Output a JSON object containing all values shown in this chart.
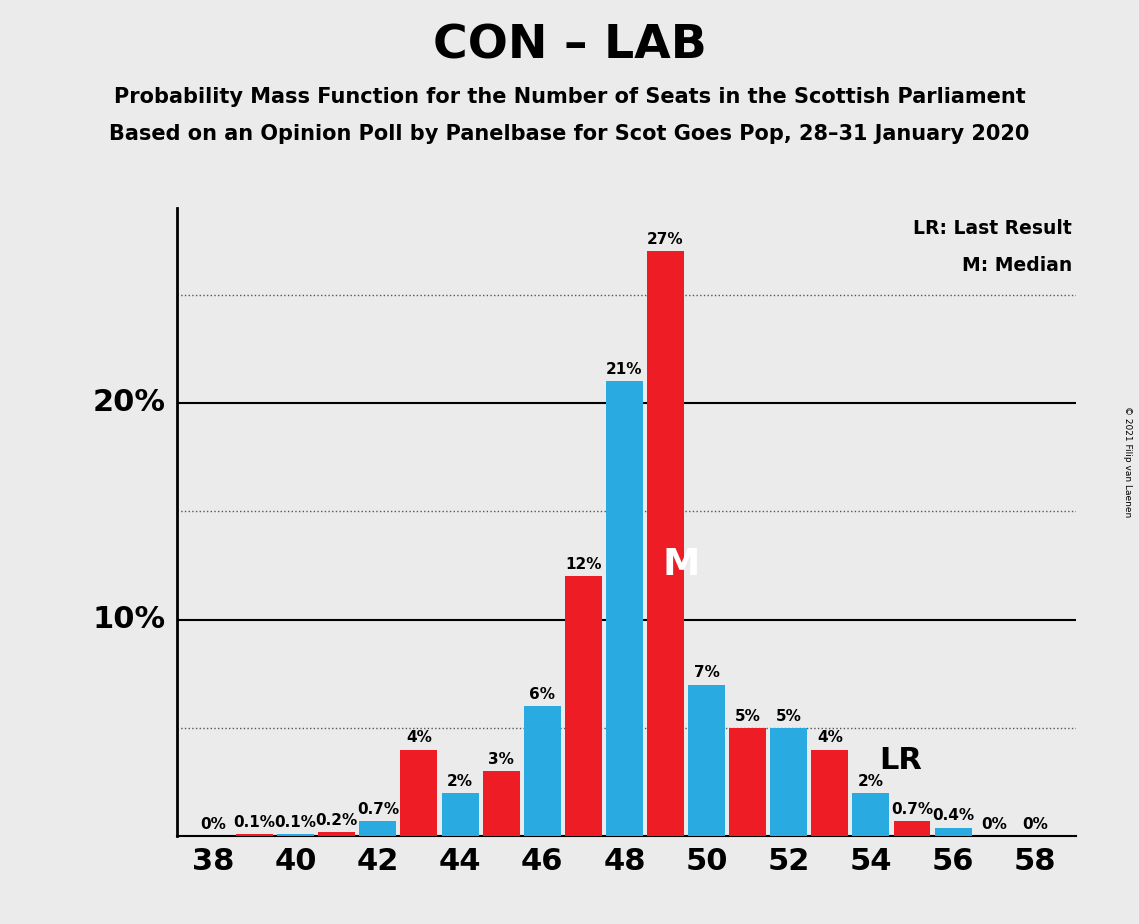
{
  "title": "CON – LAB",
  "subtitle1": "Probability Mass Function for the Number of Seats in the Scottish Parliament",
  "subtitle2": "Based on an Opinion Poll by Panelbase for Scot Goes Pop, 28–31 January 2020",
  "copyright": "© 2021 Filip van Laenen",
  "seats": [
    38,
    39,
    40,
    41,
    42,
    43,
    44,
    45,
    46,
    47,
    48,
    49,
    50,
    51,
    52,
    53,
    54,
    55,
    56,
    57,
    58
  ],
  "values": [
    0.0,
    0.1,
    0.1,
    0.2,
    0.7,
    4.0,
    2.0,
    3.0,
    6.0,
    12.0,
    21.0,
    27.0,
    7.0,
    5.0,
    5.0,
    4.0,
    2.0,
    0.7,
    0.4,
    0.0,
    0.0
  ],
  "colors": [
    "#29ABE2",
    "#EE1C25",
    "#29ABE2",
    "#EE1C25",
    "#29ABE2",
    "#EE1C25",
    "#29ABE2",
    "#EE1C25",
    "#29ABE2",
    "#EE1C25",
    "#29ABE2",
    "#EE1C25",
    "#29ABE2",
    "#EE1C25",
    "#29ABE2",
    "#EE1C25",
    "#29ABE2",
    "#EE1C25",
    "#29ABE2",
    "#EE1C25",
    "#29ABE2"
  ],
  "median_seat": 49,
  "lr_seat": 53,
  "background_color": "#EBEBEB",
  "ylim_max": 29,
  "dotted_lines": [
    5.0,
    15.0,
    25.0
  ],
  "solid_lines": [
    10.0,
    20.0
  ],
  "xticks": [
    38,
    40,
    42,
    44,
    46,
    48,
    50,
    52,
    54,
    56,
    58
  ],
  "legend_text1": "LR: Last Result",
  "legend_text2": "M: Median",
  "lr_label": "LR",
  "m_label": "M",
  "title_fontsize": 34,
  "subtitle_fontsize": 15,
  "axis_label_fontsize": 22,
  "bar_label_fontsize": 11,
  "ytick_label_fontsize": 22
}
